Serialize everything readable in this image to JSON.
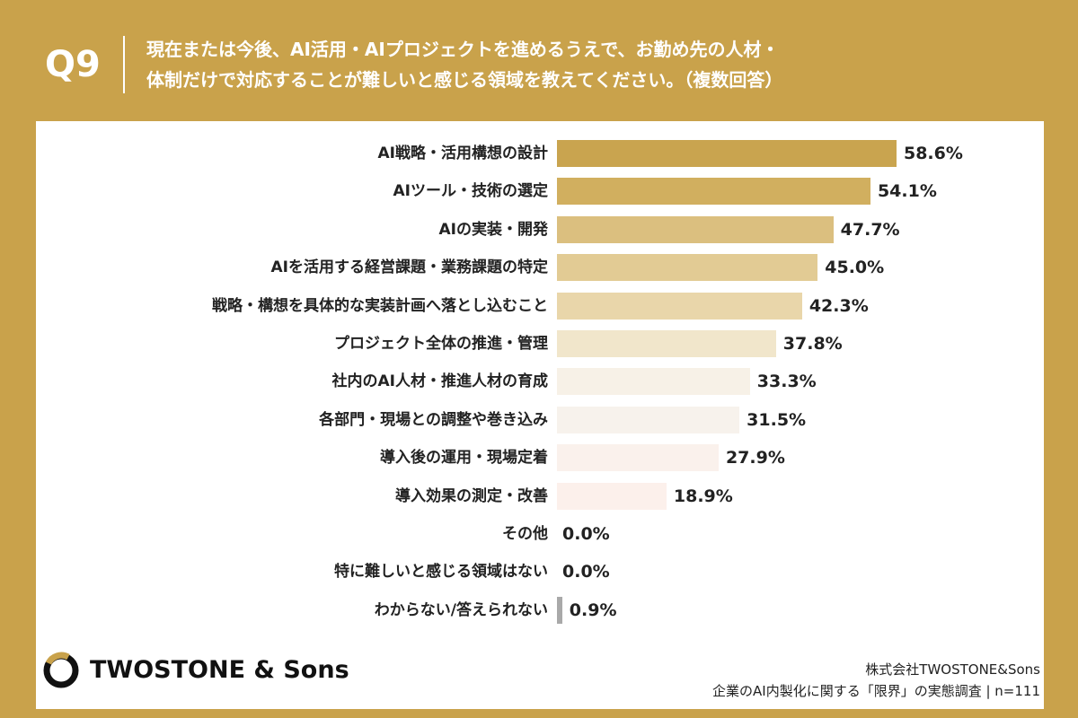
{
  "header": {
    "question_number": "Q9",
    "question_line1": "現在または今後、AI活用・AIプロジェクトを進めるうえで、お勤め先の人材・",
    "question_line2": "体制だけで対応することが難しいと感じる領域を教えてください。（複数回答）"
  },
  "chart_data": {
    "type": "bar",
    "orientation": "horizontal",
    "categories": [
      "AI戦略・活用構想の設計",
      "AIツール・技術の選定",
      "AIの実装・開発",
      "AIを活用する経営課題・業務課題の特定",
      "戦略・構想を具体的な実装計画へ落とし込むこと",
      "プロジェクト全体の推進・管理",
      "社内のAI人材・推進人材の育成",
      "各部門・現場との調整や巻き込み",
      "導入後の運用・現場定着",
      "導入効果の測定・改善",
      "その他",
      "特に難しいと感じる領域はない",
      "わからない/答えられない"
    ],
    "values": [
      58.6,
      54.1,
      47.7,
      45.0,
      42.3,
      37.8,
      33.3,
      31.5,
      27.9,
      18.9,
      0.0,
      0.0,
      0.9
    ],
    "value_labels": [
      "58.6%",
      "54.1%",
      "47.7%",
      "45.0%",
      "42.3%",
      "37.8%",
      "33.3%",
      "31.5%",
      "27.9%",
      "18.9%",
      "0.0%",
      "0.0%",
      "0.9%"
    ],
    "bar_colors": [
      "#C9A44F",
      "#D1AF5F",
      "#DBBF7F",
      "#E2CB94",
      "#E9D6AA",
      "#F1E6CB",
      "#F7F1E7",
      "#F7F2EC",
      "#FAF1EC",
      "#FCF0EB",
      "#FFFFFF",
      "#FFFFFF",
      "#A9A9A9"
    ],
    "xlim": [
      0,
      100
    ],
    "grid": false,
    "legend": "none"
  },
  "colors": {
    "background": "#C9A24B",
    "panel": "#FFFFFF",
    "text": "#222222",
    "header_text": "#FFFFFF"
  },
  "footer": {
    "logo_text": "TWOSTONE & Sons",
    "logo_icon": "twostone-logo-icon",
    "credit_line1": "株式会社TWOSTONE&Sons",
    "credit_line2": "企業のAI内製化に関する「限界」の実態調査 | n=111"
  }
}
